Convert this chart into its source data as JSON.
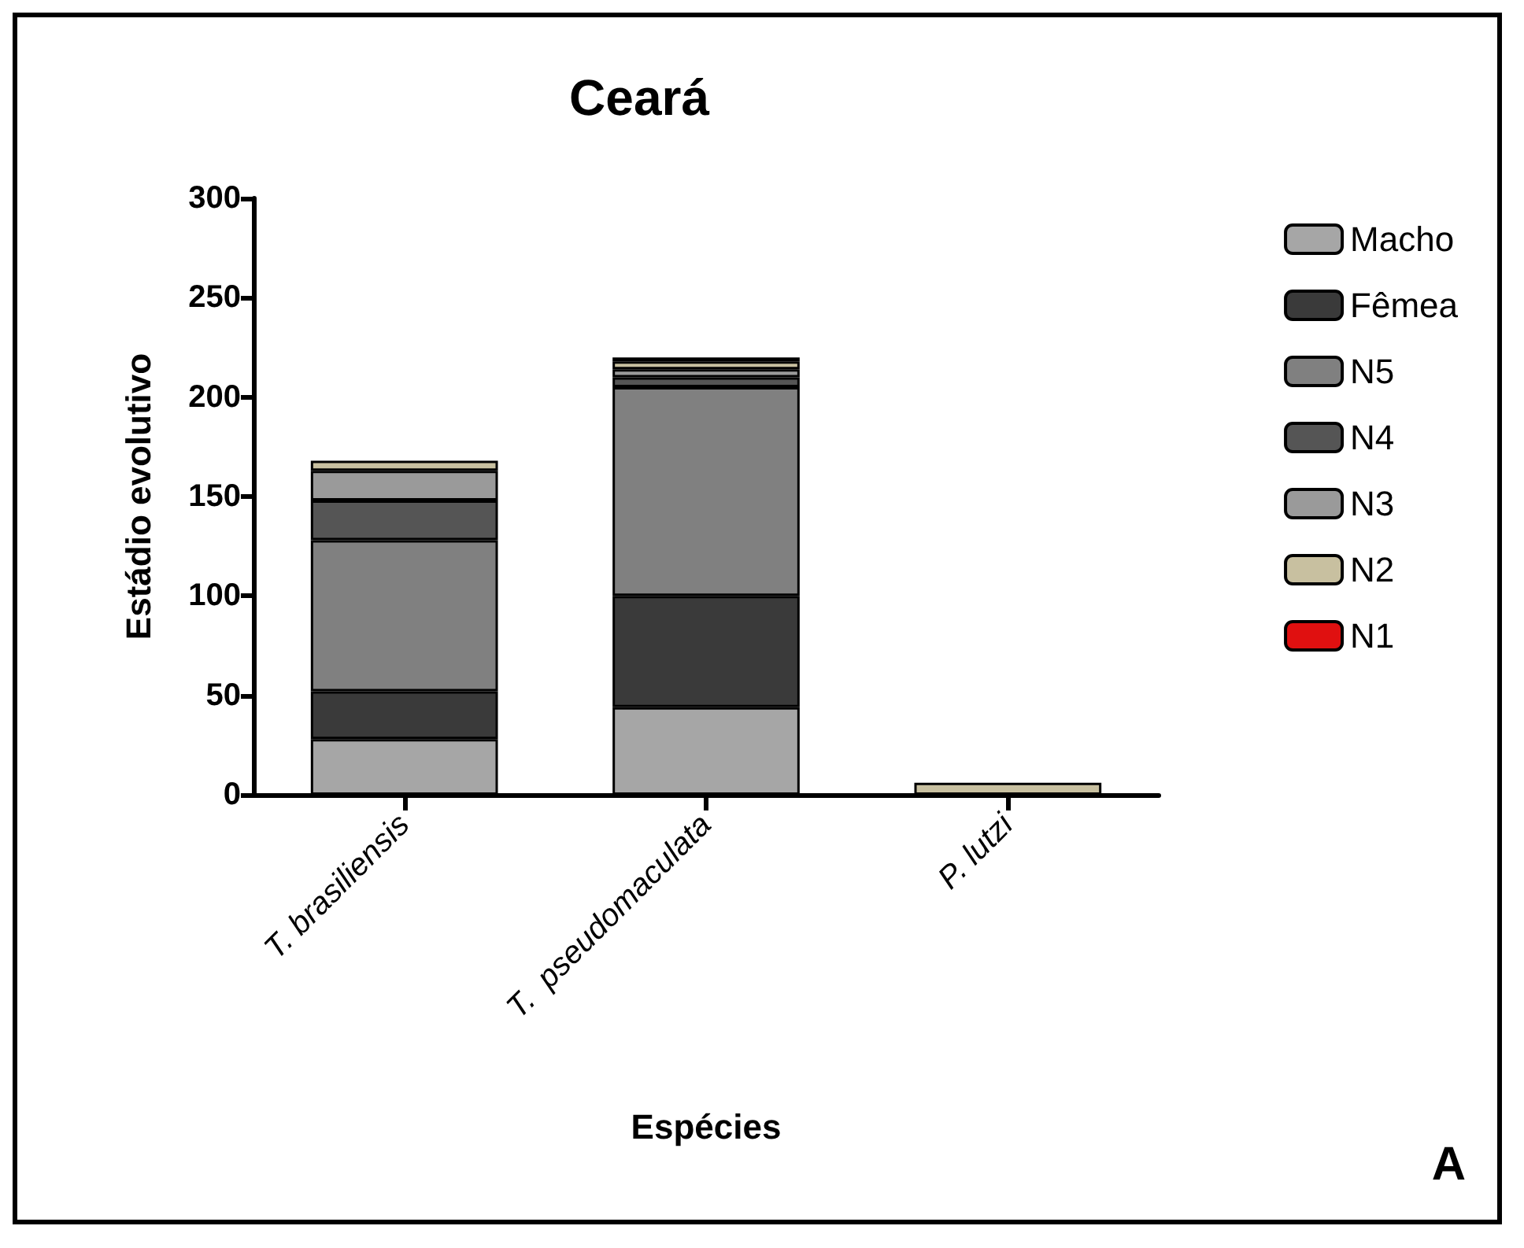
{
  "chart_data": {
    "type": "bar",
    "title": "Ceará",
    "xlabel": "Espécies",
    "ylabel": "Estádio evolutivo",
    "annotations": [
      "A"
    ],
    "categories": [
      "T. brasiliensis",
      "T.  pseudomaculata",
      "P. lutzi"
    ],
    "stacked": true,
    "ylim": [
      0,
      300
    ],
    "yticks": [
      0,
      50,
      100,
      150,
      200,
      250,
      300
    ],
    "grid": false,
    "legend": "top right",
    "series": [
      {
        "name": "Macho",
        "color": "#a6a6a6",
        "values": [
          28,
          44,
          0
        ]
      },
      {
        "name": "Fêmea",
        "color": "#3a3a3a",
        "values": [
          24,
          56,
          0
        ]
      },
      {
        "name": "N5",
        "color": "#808080",
        "values": [
          76,
          105,
          0
        ]
      },
      {
        "name": "N4",
        "color": "#555555",
        "values": [
          20,
          5,
          0
        ]
      },
      {
        "name": "N3",
        "color": "#9a9a9a",
        "values": [
          15,
          4,
          0
        ]
      },
      {
        "name": "N2",
        "color": "#c8c0a0",
        "values": [
          5,
          4,
          6
        ]
      },
      {
        "name": "N1",
        "color": "#e01010",
        "values": [
          0,
          2,
          0
        ]
      }
    ]
  }
}
